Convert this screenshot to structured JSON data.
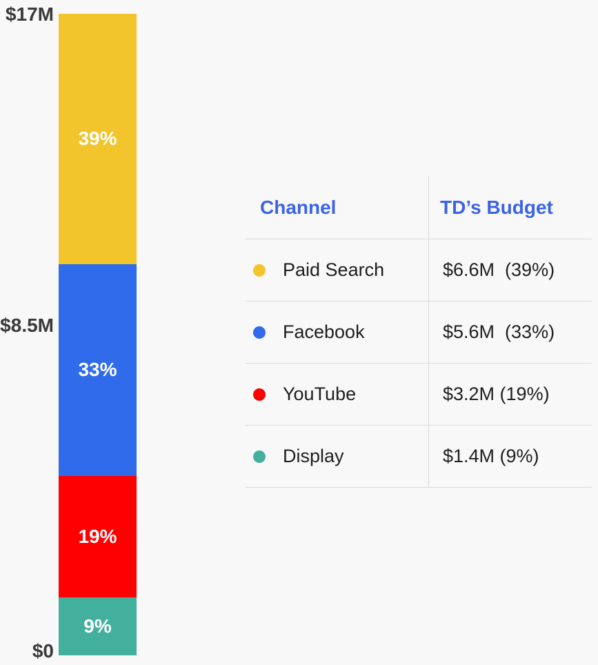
{
  "background_color": "#F8F8F9",
  "chart_data": {
    "type": "bar",
    "stacked": true,
    "orientation": "vertical",
    "title": "",
    "xlabel": "",
    "ylabel": "",
    "ylim_musd": [
      0,
      17
    ],
    "grid": false,
    "yaxis": {
      "ticks": [
        "$17M",
        "$8.5M",
        "$0"
      ]
    },
    "categories": [
      "Paid Search",
      "Facebook",
      "YouTube",
      "Display"
    ],
    "series": [
      {
        "name": "TD’s Budget",
        "values_musd": [
          6.6,
          5.6,
          3.2,
          1.4
        ],
        "percents": [
          39,
          33,
          19,
          9
        ]
      }
    ],
    "segments": [
      {
        "name": "Paid Search",
        "value": "$6.6M",
        "percent": 39,
        "bar_label": "39%",
        "color": "#F2C52D"
      },
      {
        "name": "Facebook",
        "value": "$5.6M",
        "percent": 33,
        "bar_label": "33%",
        "color": "#2F6BEA"
      },
      {
        "name": "YouTube",
        "value": "$3.2M",
        "percent": 19,
        "bar_label": "19%",
        "color": "#FE0000"
      },
      {
        "name": "Display",
        "value": "$1.4M",
        "percent": 9,
        "bar_label": "9%",
        "color": "#43B09D"
      }
    ]
  },
  "table": {
    "headers": {
      "channel": "Channel",
      "budget": "TD’s Budget"
    },
    "rows": [
      {
        "channel": "Paid Search",
        "budget": "$6.6M  (39%)",
        "color": "#F2C52D"
      },
      {
        "channel": "Facebook",
        "budget": "$5.6M  (33%)",
        "color": "#2F6BEA"
      },
      {
        "channel": "YouTube",
        "budget": "$3.2M (19%)",
        "color": "#FE0000"
      },
      {
        "channel": "Display",
        "budget": "$1.4M (9%)",
        "color": "#43B09D"
      }
    ]
  },
  "colors": {
    "header_text": "#3C63E7",
    "axis_text": "#3A3A3A",
    "table_text": "#1E1E1E",
    "grid_line": "#D9D9D9",
    "bar_label_text": "#FFFFFF"
  }
}
